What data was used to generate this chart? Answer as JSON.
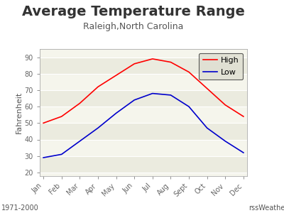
{
  "title": "Average Temperature Range",
  "subtitle": "Raleigh,North Carolina",
  "ylabel": "Fahrenheit",
  "months": [
    "Jan",
    "Feb",
    "Mar",
    "Apr",
    "May",
    "Jun",
    "Jul",
    "Aug",
    "Sept",
    "Oct",
    "Nov",
    "Dec"
  ],
  "high": [
    50,
    54,
    62,
    72,
    79,
    86,
    89,
    87,
    81,
    71,
    61,
    54
  ],
  "low": [
    29,
    31,
    39,
    47,
    56,
    64,
    68,
    67,
    60,
    47,
    39,
    32
  ],
  "high_color": "#ff0000",
  "low_color": "#0000cc",
  "ylim": [
    18,
    95
  ],
  "yticks": [
    20,
    30,
    40,
    50,
    60,
    70,
    80,
    90
  ],
  "stripe_colors": [
    "#ebebdf",
    "#f5f5ec"
  ],
  "plot_bg": "#ebebdf",
  "outer_bg": "#ffffff",
  "legend_bg": "#deded0",
  "footer_left": "1971-2000",
  "footer_right": "rssWeather.com",
  "title_fontsize": 14,
  "subtitle_fontsize": 9,
  "axis_label_fontsize": 8,
  "tick_fontsize": 7,
  "footer_fontsize": 7,
  "legend_fontsize": 8
}
